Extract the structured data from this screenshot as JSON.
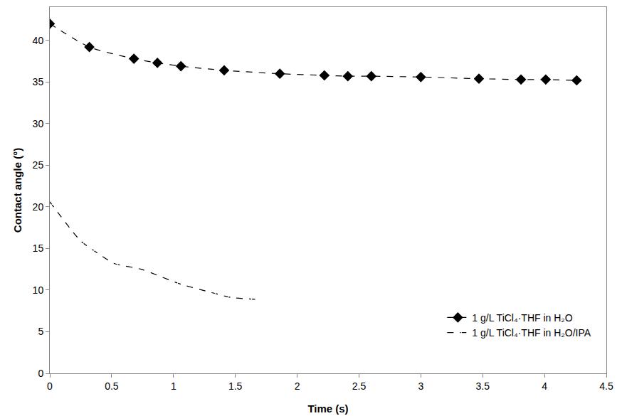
{
  "chart_data": {
    "type": "scatter",
    "x_label": "Time (s)",
    "y_label": "Contact angle (°)",
    "xlim": [
      0,
      4.5
    ],
    "xticks": [
      0,
      0.5,
      1,
      1.5,
      2,
      2.5,
      3,
      3.5,
      4,
      4.5
    ],
    "ylim": [
      0,
      44
    ],
    "yticks": [
      0,
      5,
      10,
      15,
      20,
      25,
      30,
      35,
      40
    ],
    "grid": false,
    "legend": "lower right",
    "series": [
      {
        "name": "1 g/L TiCl₄·THF in H₂O",
        "color": "#000000",
        "marker": "diamond",
        "line_style": "dashed",
        "x": [
          0,
          0.32,
          0.68,
          0.87,
          1.06,
          1.41,
          1.86,
          2.22,
          2.41,
          2.6,
          3.0,
          3.47,
          3.81,
          4.01,
          4.26
        ],
        "values": [
          42.0,
          39.2,
          37.8,
          37.3,
          36.9,
          36.4,
          36.0,
          35.8,
          35.7,
          35.7,
          35.6,
          35.4,
          35.3,
          35.3,
          35.2
        ]
      },
      {
        "name": "1 g/L TiCl₄·THF in H₂O/IPA",
        "color": "#000000",
        "marker": "circle-open",
        "line_style": "dashed",
        "x": [
          0,
          0.25,
          0.38,
          0.52,
          0.74,
          1.06,
          1.31,
          1.47,
          1.66
        ],
        "values": [
          20.6,
          15.9,
          14.5,
          13.2,
          12.5,
          10.7,
          9.7,
          9.1,
          8.9
        ]
      }
    ]
  }
}
